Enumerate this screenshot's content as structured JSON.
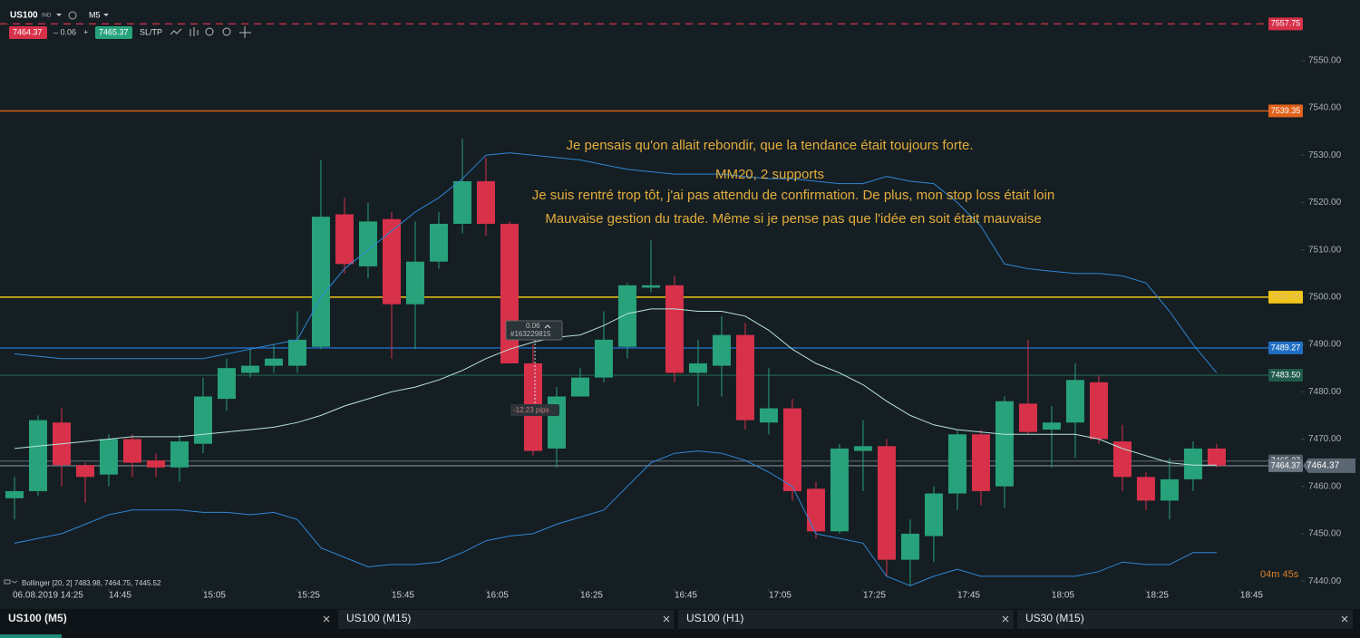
{
  "header": {
    "symbol": "US100",
    "symbol_type": "IND",
    "timeframe": "M5",
    "bid": "7464.37",
    "spread": "– 0.06",
    "plus": "+",
    "ask": "7465.37",
    "sltp": "SL/TP"
  },
  "chart_data": {
    "type": "candlestick",
    "up_color": "#27a27a",
    "down_color": "#d8314a",
    "xlim": [
      -0.615,
      54.58
    ],
    "ylim": [
      7438.3,
      7562.8
    ],
    "xticks": [
      {
        "value": 0,
        "label": "06.08.2019 14:25"
      },
      {
        "value": 4,
        "label": "14:45"
      },
      {
        "value": 8,
        "label": "15:05"
      },
      {
        "value": 12,
        "label": "15:25"
      },
      {
        "value": 16,
        "label": "15:45"
      },
      {
        "value": 20,
        "label": "16:05"
      },
      {
        "value": 24,
        "label": "16:25"
      },
      {
        "value": 28,
        "label": "16:45"
      },
      {
        "value": 32,
        "label": "17:05"
      },
      {
        "value": 36,
        "label": "17:25"
      },
      {
        "value": 40,
        "label": "17:45"
      },
      {
        "value": 44,
        "label": "18:05"
      },
      {
        "value": 48,
        "label": "18:25"
      },
      {
        "value": 52,
        "label": "18:45"
      }
    ],
    "yticks": [
      {
        "value": 7440,
        "label": "7440.00"
      },
      {
        "value": 7450,
        "label": "7450.00"
      },
      {
        "value": 7460,
        "label": "7460.00"
      },
      {
        "value": 7470,
        "label": "7470.00"
      },
      {
        "value": 7480,
        "label": "7480.00"
      },
      {
        "value": 7490,
        "label": "7490.00"
      },
      {
        "value": 7500,
        "label": "7500.00"
      },
      {
        "value": 7510,
        "label": "7510.00"
      },
      {
        "value": 7520,
        "label": "7520.00"
      },
      {
        "value": 7530,
        "label": "7530.00"
      },
      {
        "value": 7540,
        "label": "7540.00"
      },
      {
        "value": 7550,
        "label": "7550.00"
      }
    ],
    "grid": false,
    "open": [
      7457.5,
      7459,
      7473.5,
      7464.5,
      7462.5,
      7470,
      7465.5,
      7464,
      7469,
      7478.5,
      7484,
      7485.5,
      7485.5,
      7489.5,
      7517.5,
      7506.5,
      7516.5,
      7498.5,
      7507.5,
      7515.5,
      7524.5,
      7515.5,
      7486,
      7468,
      7479,
      7483,
      7489.5,
      7502,
      7502.5,
      7484,
      7485.5,
      7492,
      7473.5,
      7476.5,
      7459.5,
      7450.5,
      7467.5,
      7468.5,
      7444.5,
      7449.5,
      7458.5,
      7471,
      7460,
      7477.5,
      7472,
      7473.5,
      7482,
      7469.5,
      7462,
      7457,
      7461.5,
      7468
    ],
    "high": [
      7462,
      7475,
      7476.5,
      7465,
      7471,
      7471,
      7467,
      7471,
      7483,
      7487,
      7489,
      7490,
      7497,
      7529,
      7521,
      7520,
      7518,
      7516,
      7518,
      7533.5,
      7529.5,
      7516,
      7490,
      7481,
      7485,
      7497,
      7503,
      7512,
      7504.5,
      7491,
      7496,
      7494.5,
      7485,
      7478.5,
      7461,
      7469,
      7474,
      7470,
      7453,
      7460,
      7472,
      7472,
      7479,
      7491,
      7477,
      7486,
      7483.5,
      7473,
      7463,
      7466,
      7469.5,
      7469
    ],
    "low": [
      7453,
      7458,
      7460,
      7456.5,
      7460,
      7462,
      7462,
      7461,
      7467,
      7476,
      7483,
      7484,
      7484,
      7489,
      7505,
      7504,
      7487,
      7489,
      7506,
      7513.5,
      7513,
      7486,
      7466.5,
      7464,
      7479,
      7482,
      7487,
      7501,
      7482,
      7477,
      7479,
      7472,
      7471,
      7457,
      7449,
      7450,
      7459,
      7441,
      7439,
      7444,
      7455,
      7456,
      7455.5,
      7471,
      7464,
      7466,
      7469,
      7459,
      7455,
      7453,
      7459,
      7464
    ],
    "close": [
      7459,
      7474,
      7464.5,
      7462,
      7470,
      7465,
      7464,
      7469.5,
      7479,
      7485,
      7485.5,
      7487,
      7491,
      7517,
      7507,
      7516,
      7498.5,
      7507.5,
      7515.5,
      7524.5,
      7515.5,
      7486,
      7467.5,
      7479,
      7483,
      7491,
      7502.5,
      7502.5,
      7484,
      7486,
      7492,
      7474,
      7476.5,
      7459,
      7450.5,
      7468,
      7468.5,
      7444.5,
      7450,
      7458.5,
      7471,
      7459,
      7478,
      7471.5,
      7473.5,
      7482.5,
      7470,
      7462,
      7457,
      7461.5,
      7468,
      7464.4
    ],
    "lines": [
      {
        "color": "#2f86d6",
        "values": [
          7488,
          7487.5,
          7487,
          7487,
          7487,
          7487,
          7487,
          7487,
          7487,
          7488,
          7489,
          7490,
          7491,
          7500,
          7506,
          7510,
          7514,
          7518,
          7521,
          7525,
          7530,
          7530.5,
          7530,
          7529.5,
          7529,
          7528,
          7527,
          7526.5,
          7526,
          7526,
          7526,
          7525.5,
          7525,
          7525,
          7524.5,
          7524,
          7524,
          7525.5,
          7524.5,
          7524,
          7520,
          7515,
          7507,
          7506,
          7505.5,
          7505,
          7505,
          7504.5,
          7503,
          7497,
          7490,
          7484
        ]
      },
      {
        "color": "#b9e3dc",
        "values": [
          7468,
          7468.5,
          7469,
          7469.5,
          7470,
          7470.5,
          7470.5,
          7470.5,
          7471,
          7471.5,
          7472,
          7472.5,
          7473.5,
          7475,
          7477,
          7478.5,
          7480,
          7481,
          7482.5,
          7484.5,
          7487,
          7489,
          7490.5,
          7491.5,
          7492,
          7494,
          7496.5,
          7497.5,
          7497.5,
          7497,
          7497,
          7496,
          7493,
          7489,
          7486,
          7484,
          7481.5,
          7478,
          7475,
          7473,
          7472,
          7471.5,
          7471,
          7471,
          7471,
          7471,
          7470,
          7468,
          7466.5,
          7465,
          7464.5,
          7464.5
        ]
      },
      {
        "color": "#2f86d6",
        "values": [
          7448,
          7449,
          7450,
          7452,
          7454,
          7455,
          7455,
          7455,
          7454.5,
          7454.5,
          7454,
          7454.5,
          7453,
          7447,
          7445,
          7443,
          7443.5,
          7443.5,
          7444,
          7446,
          7448.5,
          7449.5,
          7450,
          7452,
          7453.5,
          7455,
          7460,
          7465,
          7467,
          7467.5,
          7467,
          7465.5,
          7463,
          7460,
          7450,
          7449,
          7448,
          7441,
          7439,
          7441,
          7442.5,
          7441,
          7441,
          7441,
          7441,
          7441,
          7442,
          7444,
          7443.5,
          7443.5,
          7446,
          7446
        ]
      }
    ],
    "levels": [
      {
        "value": 7557.75,
        "label": "7557.75",
        "color": "#d8314a",
        "dash": true
      },
      {
        "value": 7539.35,
        "label": "7539.35",
        "color": "#e0621a",
        "dash": false
      },
      {
        "value": 7500,
        "label": "7500.00",
        "color": "#f0c419",
        "dash": false
      },
      {
        "value": 7489.27,
        "label": "7489.27",
        "color": "#1f6fc4",
        "dash": false
      },
      {
        "value": 7483.5,
        "label": "7483.50",
        "color": "#1f5a4a",
        "dash": false
      },
      {
        "value": 7465.37,
        "label": "7465.37",
        "color": "#4d5862",
        "dash": false
      },
      {
        "value": 7464.37,
        "label": "7464.37",
        "color": "#6b7682",
        "dash": false
      }
    ],
    "annotations": [
      "Je pensais qu'on allait rebondir, que la tendance était toujours forte.",
      "MM20, 2 supports",
      "Je suis rentré trop tôt, j'ai pas attendu de confirmation. De plus, mon stop loss était loin",
      "Mauvaise gestion du trade. Même si je pense pas que l'idée en soit était mauvaise"
    ],
    "trade": {
      "volume": "0.06",
      "ticket": "#163229815",
      "pips": "-12.23 pips"
    },
    "indicator_label": "Bollinger [20, 2] 7483.98, 7464.75, 7445.52",
    "timer": "04m 45s"
  },
  "tabs": [
    "US100 (M5)",
    "US100 (M15)",
    "US100 (H1)",
    "US30 (M15)"
  ]
}
